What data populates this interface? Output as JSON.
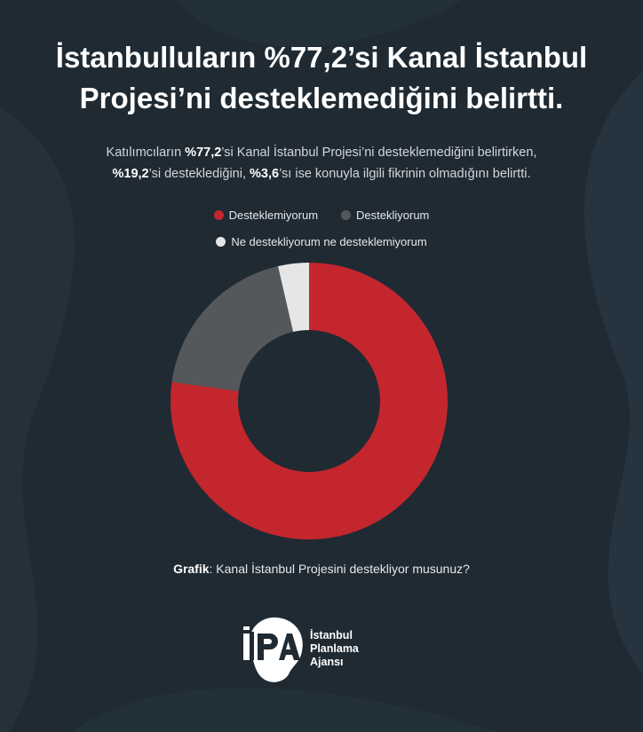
{
  "title": {
    "line1": "İstanbulluların %77,2’si Kanal İstanbul",
    "line2": "Projesi’ni desteklemediğini belirtti."
  },
  "subtitle": {
    "p1": "Katılımcıların ",
    "b1": "%77,2",
    "p2": "’si Kanal İstanbul Projesi’ni desteklemediğini belirtirken,",
    "b2": "%19,2",
    "p3": "’si desteklediğini,  ",
    "b3": "%3,6",
    "p4": "’sı ise konuyla ilgili fikrinin olmadığını belirtti."
  },
  "caption": {
    "bold": "Grafik",
    "text": ": Kanal İstanbul Projesini destekliyor musunuz?"
  },
  "logo": {
    "line1": "İstanbul",
    "line2": "Planlama",
    "line3": "Ajansı"
  },
  "colors": {
    "background": "#1f2a33",
    "red": "#c4262e",
    "gray": "#55585b",
    "light": "#e6e6e6"
  },
  "chart_data": {
    "type": "pie",
    "donut": true,
    "legend_position": "top",
    "series": [
      {
        "name": "Desteklemiyorum",
        "value": 77.2,
        "color": "#c4262e"
      },
      {
        "name": "Destekliyorum",
        "value": 19.2,
        "color": "#55585b"
      },
      {
        "name": "Ne destekliyorum ne desteklemiyorum",
        "value": 3.6,
        "color": "#e6e6e6"
      }
    ]
  }
}
